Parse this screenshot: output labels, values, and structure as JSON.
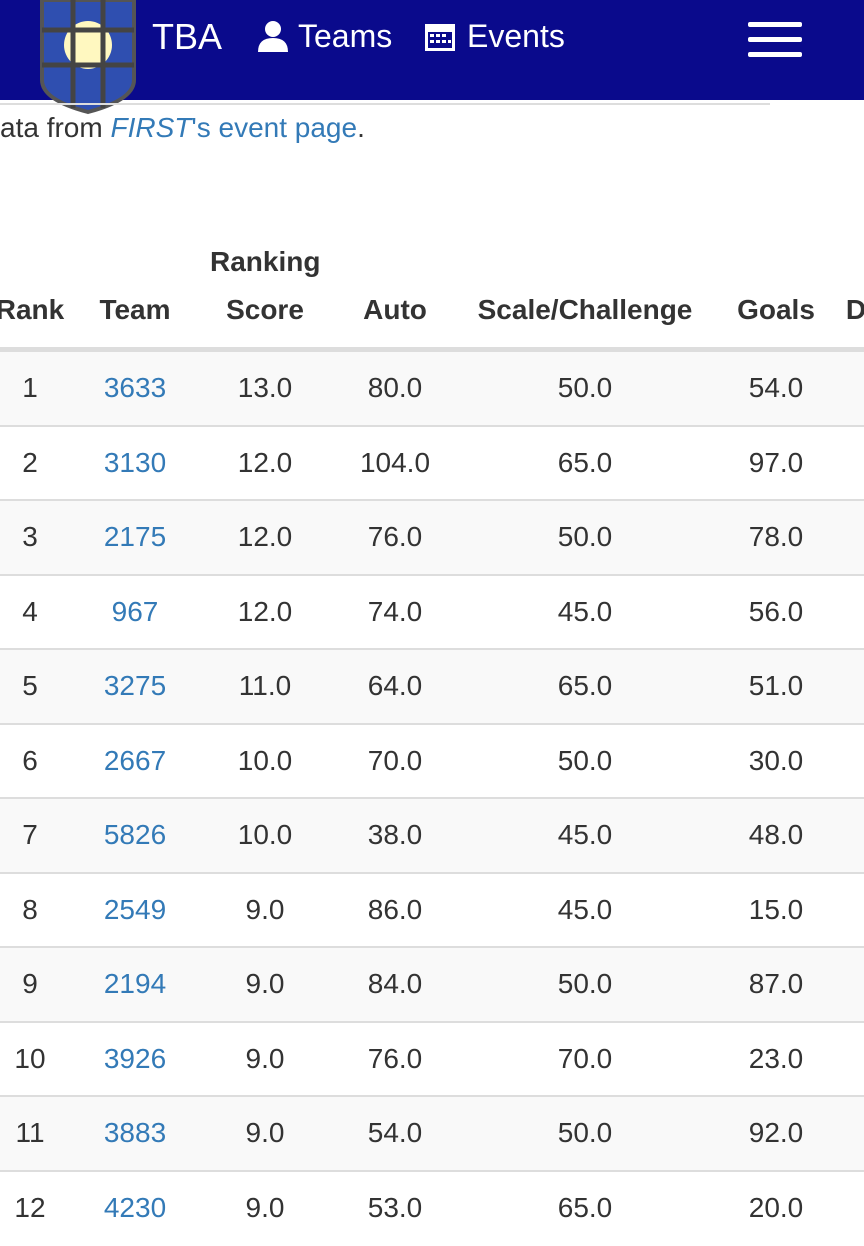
{
  "navbar": {
    "brand": "TBA",
    "links": [
      "Teams",
      "Events"
    ]
  },
  "intro": {
    "prefix": "ata from ",
    "link_em": "FIRST",
    "link_rest": "'s event page",
    "suffix": "."
  },
  "table": {
    "headers": [
      "Rank",
      "Team",
      "Ranking Score",
      "Auto",
      "Scale/Challenge",
      "Goals",
      "D"
    ],
    "rows": [
      [
        "1",
        "3633",
        "13.0",
        "80.0",
        "50.0",
        "54.0"
      ],
      [
        "2",
        "3130",
        "12.0",
        "104.0",
        "65.0",
        "97.0"
      ],
      [
        "3",
        "2175",
        "12.0",
        "76.0",
        "50.0",
        "78.0"
      ],
      [
        "4",
        "967",
        "12.0",
        "74.0",
        "45.0",
        "56.0"
      ],
      [
        "5",
        "3275",
        "11.0",
        "64.0",
        "65.0",
        "51.0"
      ],
      [
        "6",
        "2667",
        "10.0",
        "70.0",
        "50.0",
        "30.0"
      ],
      [
        "7",
        "5826",
        "10.0",
        "38.0",
        "45.0",
        "48.0"
      ],
      [
        "8",
        "2549",
        "9.0",
        "86.0",
        "45.0",
        "15.0"
      ],
      [
        "9",
        "2194",
        "9.0",
        "84.0",
        "50.0",
        "87.0"
      ],
      [
        "10",
        "3926",
        "9.0",
        "76.0",
        "70.0",
        "23.0"
      ],
      [
        "11",
        "3883",
        "9.0",
        "54.0",
        "50.0",
        "92.0"
      ],
      [
        "12",
        "4230",
        "9.0",
        "53.0",
        "65.0",
        "20.0"
      ]
    ]
  }
}
